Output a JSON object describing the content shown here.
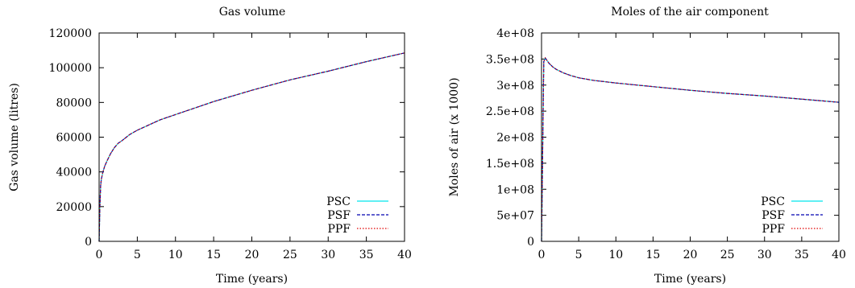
{
  "chart_data": [
    {
      "type": "line",
      "title": "Gas volume",
      "xlabel": "Time (years)",
      "ylabel": "Gas volume (litres)",
      "xlim": [
        0,
        40
      ],
      "ylim": [
        0,
        120000
      ],
      "xticks": [
        0,
        5,
        10,
        15,
        20,
        25,
        30,
        35,
        40
      ],
      "yticks": [
        0,
        20000,
        40000,
        60000,
        80000,
        100000,
        120000
      ],
      "xtick_labels": [
        "0",
        "5",
        "10",
        "15",
        "20",
        "25",
        "30",
        "35",
        "40"
      ],
      "ytick_labels": [
        "0",
        "20000",
        "40000",
        "60000",
        "80000",
        "100000",
        "120000"
      ],
      "grid": false,
      "legend_position": "bottom-right",
      "x": [
        0,
        0.1,
        0.2,
        0.3,
        0.5,
        0.75,
        1,
        1.5,
        2,
        2.5,
        3,
        4,
        5,
        6,
        7,
        8,
        10,
        12,
        15,
        20,
        25,
        30,
        35,
        40
      ],
      "series": [
        {
          "name": "PSC",
          "color": "#00e5ee",
          "dash": "solid",
          "values": [
            0,
            20000,
            32000,
            36000,
            40000,
            43500,
            46000,
            50500,
            54000,
            56500,
            58000,
            61500,
            64000,
            66000,
            68000,
            70000,
            73000,
            76000,
            80500,
            87000,
            93000,
            98000,
            103500,
            108500
          ]
        },
        {
          "name": "PSF",
          "color": "#0000b0",
          "dash": "dashed",
          "values": [
            0,
            20000,
            32000,
            36000,
            40000,
            43500,
            46000,
            50500,
            54000,
            56500,
            58000,
            61500,
            64000,
            66000,
            68000,
            70000,
            73000,
            76000,
            80500,
            87000,
            93000,
            98000,
            103500,
            108500
          ]
        },
        {
          "name": "PPF",
          "color": "#e00000",
          "dash": "dotted",
          "values": [
            0,
            20000,
            32000,
            36000,
            40000,
            43500,
            46000,
            50500,
            54000,
            56500,
            58000,
            61500,
            64000,
            66000,
            68000,
            70000,
            73000,
            76000,
            80500,
            87000,
            93000,
            98000,
            103500,
            108500
          ]
        }
      ]
    },
    {
      "type": "line",
      "title": "Moles of the air component",
      "xlabel": "Time (years)",
      "ylabel": "Moles of air (x 1000)",
      "xlim": [
        0,
        40
      ],
      "ylim": [
        0,
        400000000
      ],
      "xticks": [
        0,
        5,
        10,
        15,
        20,
        25,
        30,
        35,
        40
      ],
      "yticks": [
        0,
        50000000,
        100000000,
        150000000,
        200000000,
        250000000,
        300000000,
        350000000,
        400000000
      ],
      "xtick_labels": [
        "0",
        "5",
        "10",
        "15",
        "20",
        "25",
        "30",
        "35",
        "40"
      ],
      "ytick_labels": [
        "0",
        "5e+07",
        "1e+08",
        "1.5e+08",
        "2e+08",
        "2.5e+08",
        "3e+08",
        "3.5e+08",
        "4e+08"
      ],
      "grid": false,
      "legend_position": "bottom-right",
      "x": [
        0,
        0.3,
        0.5,
        0.7,
        1,
        1.5,
        2,
        3,
        4,
        5,
        7,
        10,
        15,
        20,
        25,
        30,
        35,
        40
      ],
      "series": [
        {
          "name": "PSC",
          "color": "#00e5ee",
          "dash": "solid",
          "values": [
            0,
            345000000,
            352000000,
            348000000,
            342000000,
            335000000,
            330000000,
            323000000,
            318000000,
            314000000,
            309000000,
            304000000,
            297000000,
            290000000,
            284000000,
            279000000,
            273000000,
            267000000
          ]
        },
        {
          "name": "PSF",
          "color": "#0000b0",
          "dash": "dashed",
          "values": [
            0,
            345000000,
            352000000,
            348000000,
            342000000,
            335000000,
            330000000,
            323000000,
            318000000,
            314000000,
            309000000,
            304000000,
            297000000,
            290000000,
            284000000,
            279000000,
            273000000,
            267000000
          ]
        },
        {
          "name": "PPF",
          "color": "#e00000",
          "dash": "dotted",
          "values": [
            0,
            345000000,
            352000000,
            348000000,
            342000000,
            335000000,
            330000000,
            323000000,
            318000000,
            314000000,
            309000000,
            304000000,
            297000000,
            290000000,
            284000000,
            279000000,
            273000000,
            267000000
          ]
        }
      ]
    }
  ]
}
